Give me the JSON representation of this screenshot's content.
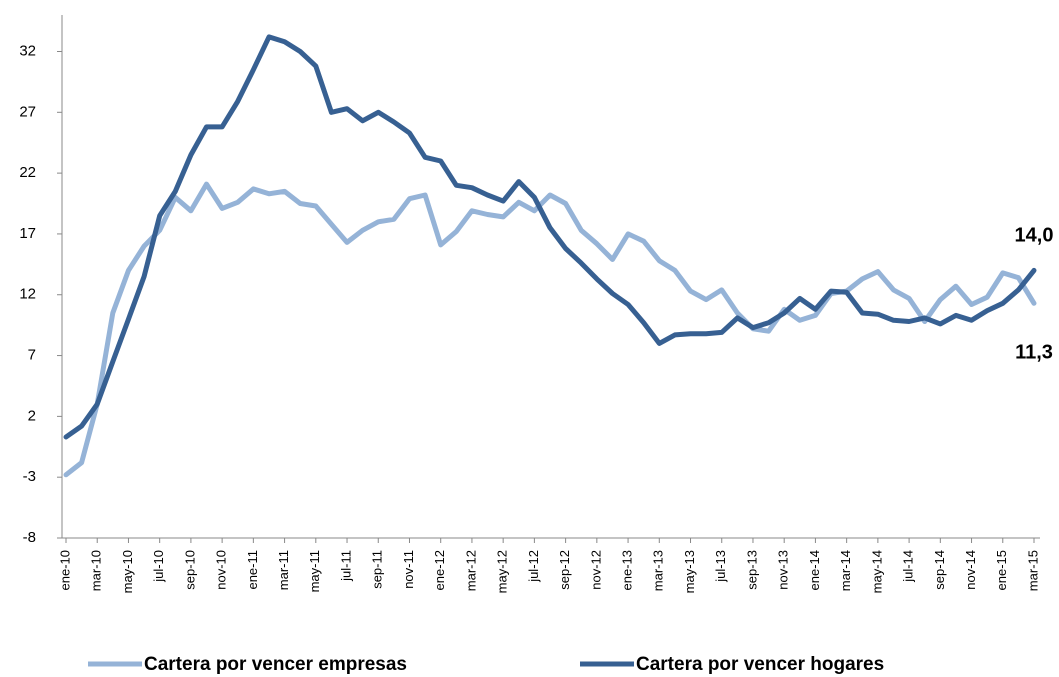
{
  "chart_data": {
    "type": "line",
    "categories": [
      "ene-10",
      null,
      "mar-10",
      null,
      "may-10",
      null,
      "jul-10",
      null,
      "sep-10",
      null,
      "nov-10",
      null,
      "ene-11",
      null,
      "mar-11",
      null,
      "may-11",
      null,
      "jul-11",
      null,
      "sep-11",
      null,
      "nov-11",
      null,
      "ene-12",
      null,
      "mar-12",
      null,
      "may-12",
      null,
      "jul-12",
      null,
      "sep-12",
      null,
      "nov-12",
      null,
      "ene-13",
      null,
      "mar-13",
      null,
      "may-13",
      null,
      "jul-13",
      null,
      "sep-13",
      null,
      "nov-13",
      null,
      "ene-14",
      null,
      "mar-14",
      null,
      "may-14",
      null,
      "jul-14",
      null,
      "sep-14",
      null,
      "nov-14",
      null,
      "ene-15",
      null,
      "mar-15"
    ],
    "series": [
      {
        "name": "Cartera por vencer empresas",
        "color": "#95b3d7",
        "values": [
          -2.8,
          -1.8,
          3,
          10.5,
          14,
          16,
          17.3,
          20,
          18.9,
          21.1,
          19.1,
          19.6,
          20.7,
          20.3,
          20.5,
          19.5,
          19.3,
          17.8,
          16.3,
          17.3,
          18,
          18.2,
          19.9,
          20.2,
          16.1,
          17.2,
          18.9,
          18.6,
          18.4,
          19.6,
          18.9,
          20.2,
          19.5,
          17.3,
          16.2,
          14.9,
          17,
          16.4,
          14.8,
          14,
          12.3,
          11.6,
          12.4,
          10.5,
          9.2,
          9,
          10.8,
          9.9,
          10.3,
          12.1,
          12.3,
          13.3,
          13.9,
          12.4,
          11.7,
          9.8,
          11.6,
          12.7,
          11.2,
          11.8,
          13.8,
          13.4,
          11.3
        ],
        "value_labels": [
          null,
          null,
          null,
          null,
          null,
          null,
          null,
          null,
          null,
          null,
          null,
          null,
          null,
          null,
          null,
          null,
          null,
          null,
          null,
          null,
          null,
          null,
          null,
          null,
          null,
          null,
          null,
          null,
          null,
          null,
          null,
          null,
          null,
          null,
          null,
          null,
          null,
          null,
          null,
          null,
          null,
          null,
          null,
          null,
          null,
          null,
          null,
          null,
          null,
          null,
          null,
          null,
          null,
          null,
          null,
          null,
          null,
          null,
          null,
          null,
          null,
          null,
          "11,3"
        ]
      },
      {
        "name": "Cartera por vencer hogares",
        "color": "#376092",
        "values": [
          0.3,
          1.2,
          3,
          6.5,
          10,
          13.5,
          18.5,
          20.5,
          23.5,
          25.8,
          25.8,
          27.9,
          30.5,
          33.2,
          32.8,
          32,
          30.8,
          27,
          27.3,
          26.3,
          27,
          26.2,
          25.3,
          23.3,
          23,
          21,
          20.8,
          20.2,
          19.7,
          21.3,
          20,
          17.5,
          15.8,
          14.6,
          13.3,
          12.1,
          11.2,
          9.7,
          8,
          8.7,
          8.8,
          8.8,
          8.9,
          10.1,
          9.3,
          9.7,
          10.5,
          11.7,
          10.8,
          12.3,
          12.2,
          10.5,
          10.4,
          9.9,
          9.8,
          10.1,
          9.6,
          10.3,
          9.9,
          10.7,
          11.3,
          12.4,
          14.0
        ],
        "value_labels": [
          null,
          null,
          null,
          null,
          null,
          null,
          null,
          null,
          null,
          null,
          null,
          null,
          null,
          null,
          null,
          null,
          null,
          null,
          null,
          null,
          null,
          null,
          null,
          null,
          null,
          null,
          null,
          null,
          null,
          null,
          null,
          null,
          null,
          null,
          null,
          null,
          null,
          null,
          null,
          null,
          null,
          null,
          null,
          null,
          null,
          null,
          null,
          null,
          null,
          null,
          null,
          null,
          null,
          null,
          null,
          null,
          null,
          null,
          null,
          null,
          null,
          null,
          "14,0"
        ]
      }
    ],
    "ylim": [
      -8,
      35
    ],
    "yticks": [
      -8,
      -3,
      2,
      7,
      12,
      17,
      22,
      27,
      32
    ],
    "grid": false,
    "legend": "bottom"
  }
}
